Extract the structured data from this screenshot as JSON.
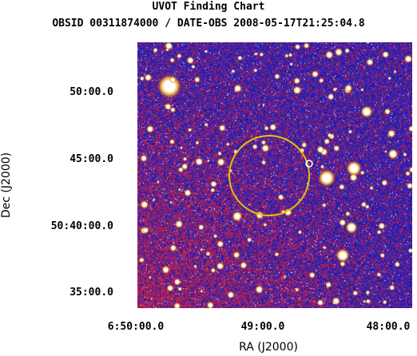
{
  "title": "UVOT Finding Chart",
  "subtitle": "OBSID 00311874000 / DATE-OBS 2008-05-17T21:25:04.8",
  "axes": {
    "x_label": "RA (J2000)",
    "y_label": "Dec (J2000)",
    "x_ticks": [
      "6:50:00.0",
      "49:00.0",
      "48:00.0"
    ],
    "y_ticks": [
      "50:00.0",
      "45:00.0",
      "50:40:00.0",
      "35:00.0"
    ]
  },
  "colors": {
    "background": "#1a1aa8",
    "noise_red": "#d01818",
    "stars": "#ffffff",
    "target_circle": "#e8c000",
    "source_marker": "#ffffff"
  },
  "markers": {
    "target_circle": "yellow-circle",
    "source_marker": "small-white-circle"
  }
}
